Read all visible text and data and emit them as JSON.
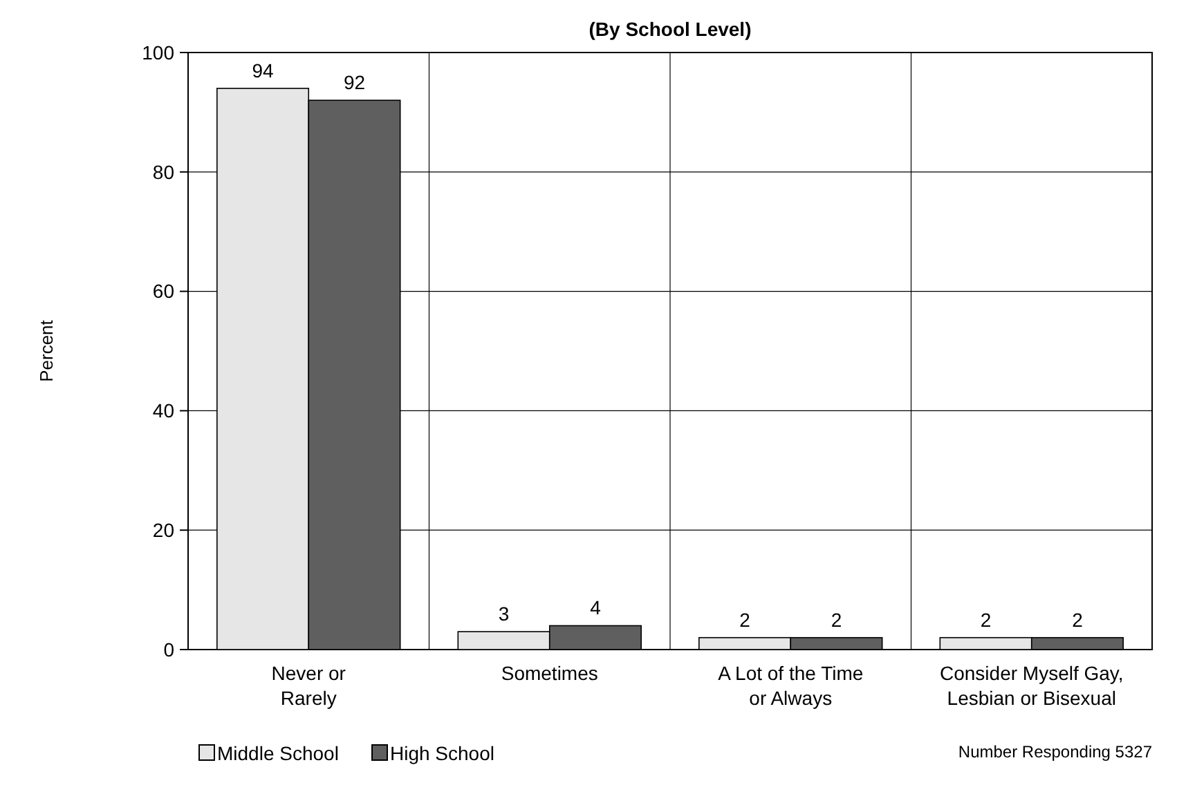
{
  "chart_data": {
    "type": "bar",
    "title": "(By School Level)",
    "ylabel": "Percent",
    "categories": [
      "Never or\nRarely",
      "Sometimes",
      "A Lot of the Time\nor Always",
      "Consider Myself Gay,\nLesbian or Bisexual"
    ],
    "series": [
      {
        "name": "Middle School",
        "color": "#e6e6e6",
        "values": [
          94,
          3,
          2,
          2
        ]
      },
      {
        "name": "High School",
        "color": "#5f5f5f",
        "values": [
          92,
          4,
          2,
          2
        ]
      }
    ],
    "ylim": [
      0,
      100
    ],
    "yticks": [
      0,
      20,
      40,
      60,
      80,
      100
    ],
    "grid": "y",
    "legend": "bottom left",
    "data_labels": true,
    "annotations": [
      "Number Responding 5327"
    ]
  }
}
